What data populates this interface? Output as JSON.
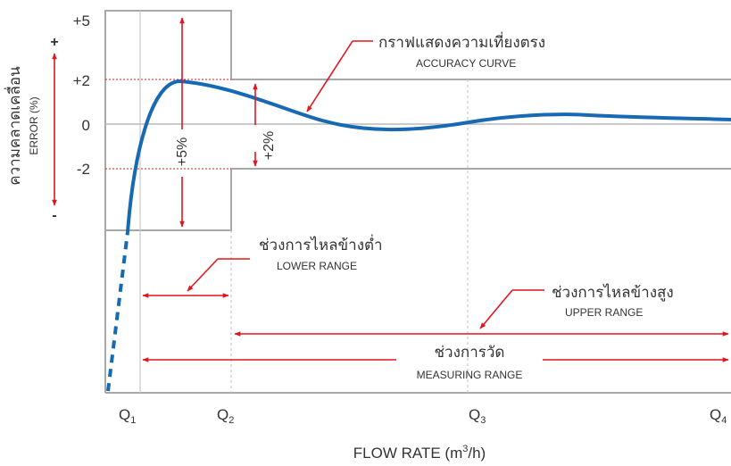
{
  "colors": {
    "curve": "#1769b3",
    "arrow": "#e0161e",
    "frame": "#a8a8a8",
    "zeroline": "#b9b9b9",
    "guide": "#c7c7c7",
    "text": "#333333"
  },
  "y_axis": {
    "title_thai": "ความคลาดเคลื่อน",
    "title_en": "ERROR (%)",
    "plus_sign": "+",
    "minus_sign": "-",
    "ticks": [
      "+5",
      "+2",
      "0",
      "-2"
    ]
  },
  "x_axis": {
    "title_main": "FLOW RATE (m",
    "title_sup": "3",
    "title_end": "/h)",
    "ticks": [
      {
        "q": "Q",
        "sub": "1"
      },
      {
        "q": "Q",
        "sub": "2"
      },
      {
        "q": "Q",
        "sub": "3"
      },
      {
        "q": "Q",
        "sub": "4"
      }
    ]
  },
  "labels": {
    "accuracy_thai": "กราฟแสดงความเที่ยงตรง",
    "accuracy_en": "ACCURACY CURVE",
    "band5": "+5%",
    "band2": "+2%",
    "lower_thai": "ช่วงการไหลข้างต่ำ",
    "lower_en": "LOWER RANGE",
    "upper_thai": "ช่วงการไหลข้างสูง",
    "upper_en": "UPPER RANGE",
    "measure_thai": "ช่วงการวัด",
    "measure_en": "MEASURING RANGE"
  }
}
